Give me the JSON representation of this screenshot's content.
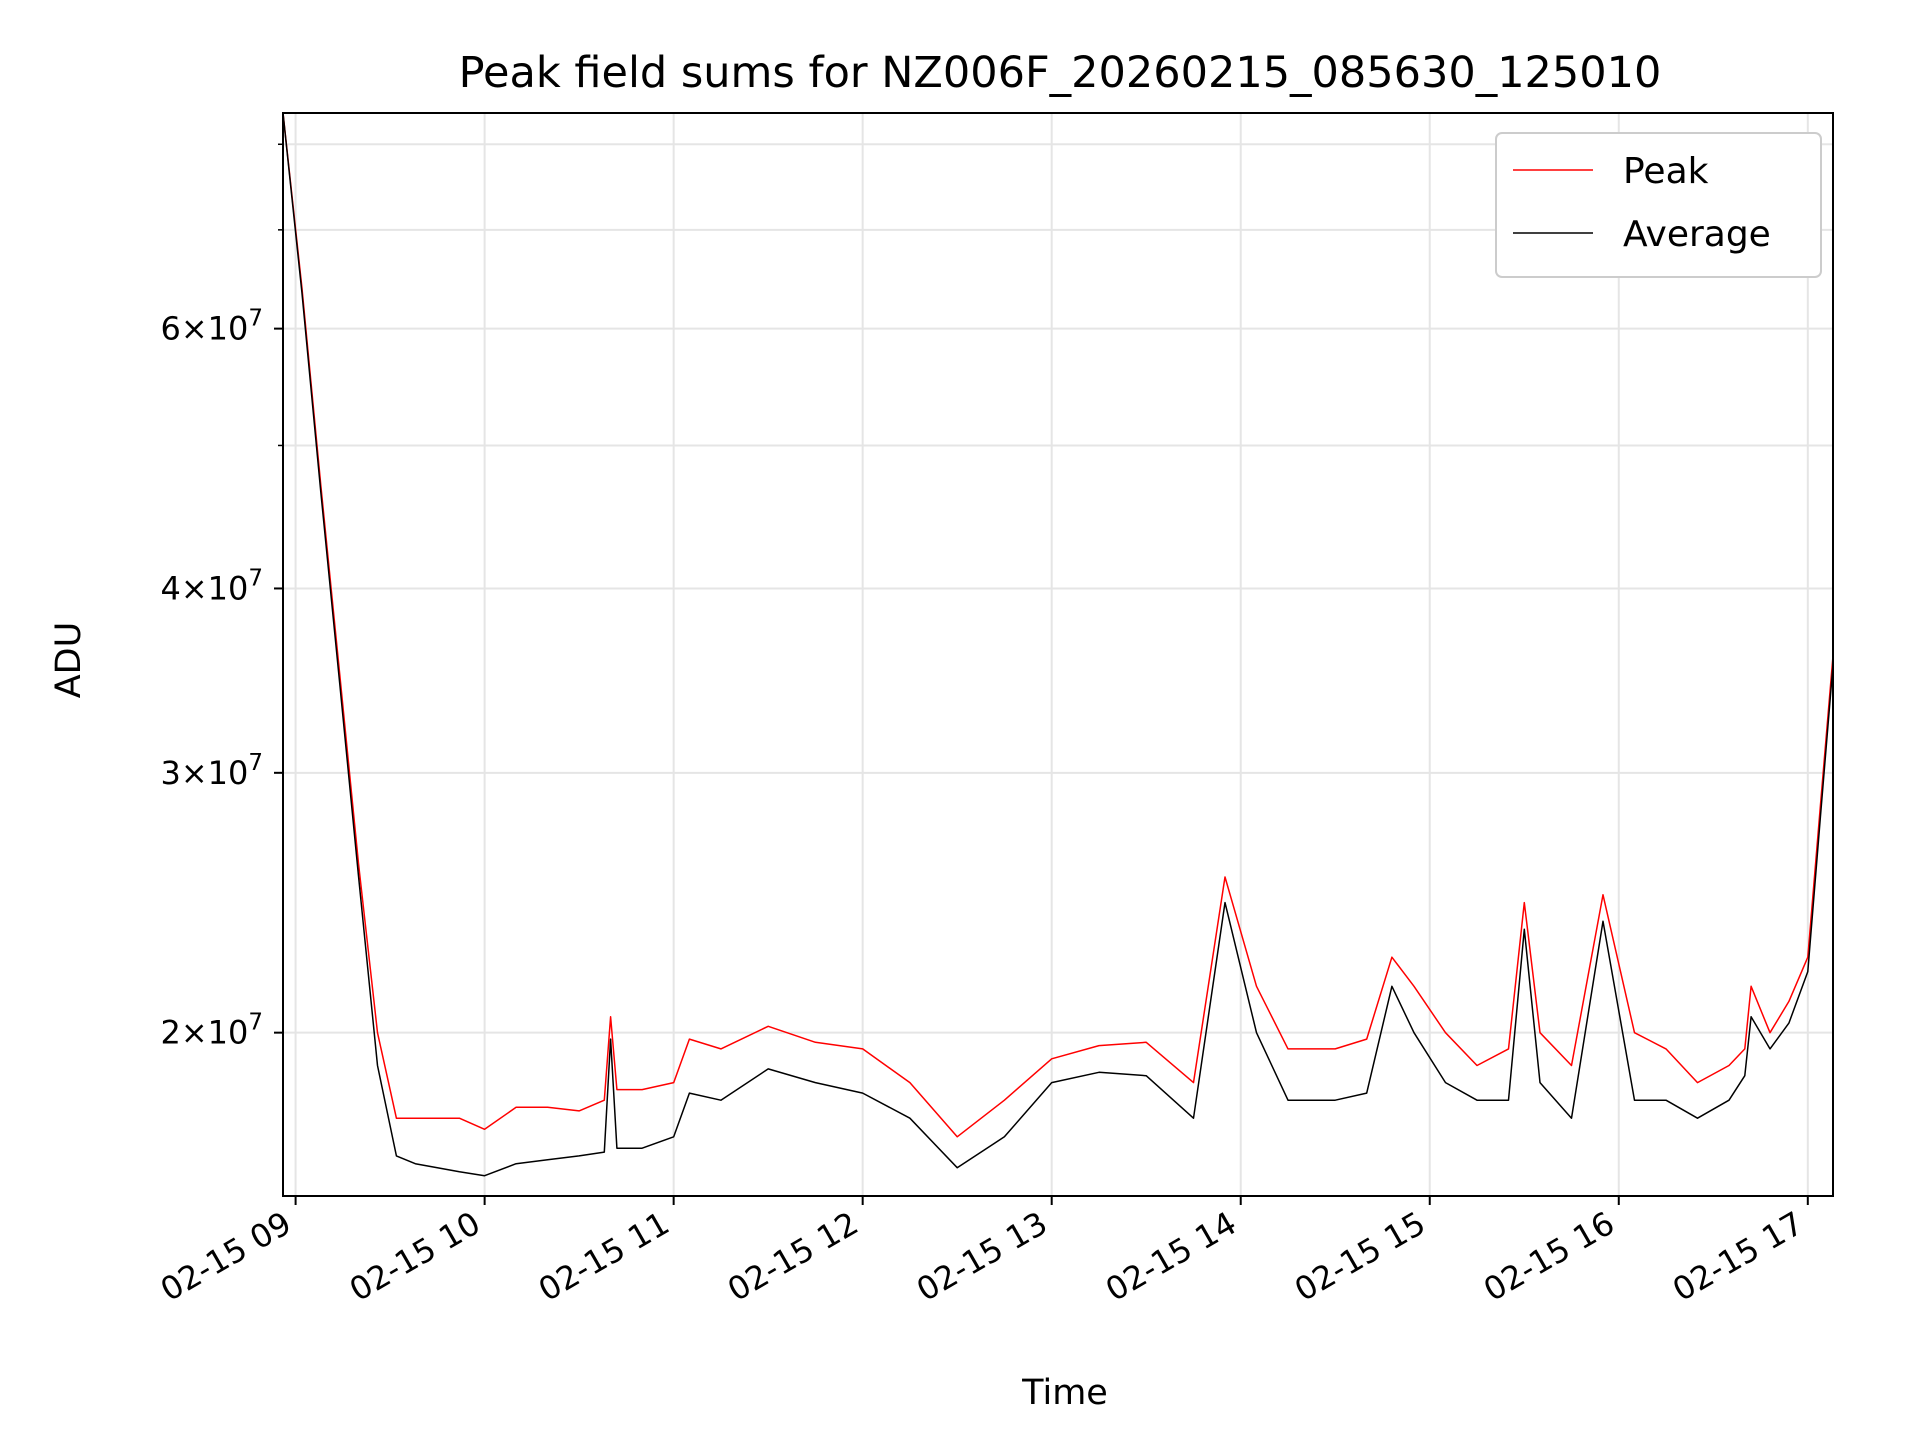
{
  "chart_data": {
    "type": "line",
    "title": "Peak field sums for NZ006F_20260215_085630_125010",
    "xlabel": "Time",
    "ylabel": "ADU",
    "yscale": "log",
    "xlim": [
      "02-15 08:56",
      "02-15 17:08"
    ],
    "ylim": [
      15500000,
      84000000
    ],
    "grid": true,
    "legend_position": "top-right",
    "x_ticks": [
      {
        "at": "02-15 09:00",
        "label": "02-15 09"
      },
      {
        "at": "02-15 10:00",
        "label": "02-15 10"
      },
      {
        "at": "02-15 11:00",
        "label": "02-15 11"
      },
      {
        "at": "02-15 12:00",
        "label": "02-15 12"
      },
      {
        "at": "02-15 13:00",
        "label": "02-15 13"
      },
      {
        "at": "02-15 14:00",
        "label": "02-15 14"
      },
      {
        "at": "02-15 15:00",
        "label": "02-15 15"
      },
      {
        "at": "02-15 16:00",
        "label": "02-15 16"
      },
      {
        "at": "02-15 17:00",
        "label": "02-15 17"
      }
    ],
    "y_ticks": [
      {
        "value": 20000000,
        "mantissa": "2",
        "base": "10",
        "exponent": "7"
      },
      {
        "value": 30000000,
        "mantissa": "3",
        "base": "10",
        "exponent": "7"
      },
      {
        "value": 40000000,
        "mantissa": "4",
        "base": "10",
        "exponent": "7"
      },
      {
        "value": 60000000,
        "mantissa": "6",
        "base": "10",
        "exponent": "7"
      }
    ],
    "y_minor_ticks": [
      50000000,
      70000000,
      80000000
    ],
    "times_symbol": "×",
    "series": [
      {
        "name": "Peak",
        "color": "#ff0000",
        "x": [
          "02-15 08:56",
          "02-15 09:02",
          "02-15 09:08",
          "02-15 09:14",
          "02-15 09:20",
          "02-15 09:26",
          "02-15 09:32",
          "02-15 09:38",
          "02-15 09:45",
          "02-15 09:52",
          "02-15 10:00",
          "02-15 10:10",
          "02-15 10:20",
          "02-15 10:30",
          "02-15 10:38",
          "02-15 10:40",
          "02-15 10:42",
          "02-15 10:50",
          "02-15 11:00",
          "02-15 11:05",
          "02-15 11:15",
          "02-15 11:30",
          "02-15 11:45",
          "02-15 12:00",
          "02-15 12:15",
          "02-15 12:30",
          "02-15 12:45",
          "02-15 13:00",
          "02-15 13:15",
          "02-15 13:30",
          "02-15 13:45",
          "02-15 13:55",
          "02-15 14:05",
          "02-15 14:15",
          "02-15 14:30",
          "02-15 14:40",
          "02-15 14:48",
          "02-15 14:55",
          "02-15 15:05",
          "02-15 15:15",
          "02-15 15:25",
          "02-15 15:30",
          "02-15 15:35",
          "02-15 15:45",
          "02-15 15:55",
          "02-15 16:05",
          "02-15 16:15",
          "02-15 16:25",
          "02-15 16:35",
          "02-15 16:40",
          "02-15 16:42",
          "02-15 16:48",
          "02-15 16:54",
          "02-15 17:00",
          "02-15 17:04",
          "02-15 17:08"
        ],
        "values": [
          84000000,
          64000000,
          47000000,
          35000000,
          26000000,
          20000000,
          17500000,
          17500000,
          17500000,
          17500000,
          17200000,
          17800000,
          17800000,
          17700000,
          18000000,
          20500000,
          18300000,
          18300000,
          18500000,
          19800000,
          19500000,
          20200000,
          19700000,
          19500000,
          18500000,
          17000000,
          18000000,
          19200000,
          19600000,
          19700000,
          18500000,
          25500000,
          21500000,
          19500000,
          19500000,
          19800000,
          22500000,
          21500000,
          20000000,
          19000000,
          19500000,
          24500000,
          20000000,
          19000000,
          24800000,
          20000000,
          19500000,
          18500000,
          19000000,
          19500000,
          21500000,
          20000000,
          21000000,
          22500000,
          28500000,
          36000000
        ]
      },
      {
        "name": "Average",
        "color": "#000000",
        "x": [
          "02-15 08:56",
          "02-15 09:02",
          "02-15 09:08",
          "02-15 09:14",
          "02-15 09:20",
          "02-15 09:26",
          "02-15 09:32",
          "02-15 09:38",
          "02-15 09:45",
          "02-15 09:52",
          "02-15 10:00",
          "02-15 10:10",
          "02-15 10:20",
          "02-15 10:30",
          "02-15 10:38",
          "02-15 10:40",
          "02-15 10:42",
          "02-15 10:50",
          "02-15 11:00",
          "02-15 11:05",
          "02-15 11:15",
          "02-15 11:30",
          "02-15 11:45",
          "02-15 12:00",
          "02-15 12:15",
          "02-15 12:30",
          "02-15 12:45",
          "02-15 13:00",
          "02-15 13:15",
          "02-15 13:30",
          "02-15 13:45",
          "02-15 13:55",
          "02-15 14:05",
          "02-15 14:15",
          "02-15 14:30",
          "02-15 14:40",
          "02-15 14:48",
          "02-15 14:55",
          "02-15 15:05",
          "02-15 15:15",
          "02-15 15:25",
          "02-15 15:30",
          "02-15 15:35",
          "02-15 15:45",
          "02-15 15:55",
          "02-15 16:05",
          "02-15 16:15",
          "02-15 16:25",
          "02-15 16:35",
          "02-15 16:40",
          "02-15 16:42",
          "02-15 16:48",
          "02-15 16:54",
          "02-15 17:00",
          "02-15 17:04",
          "02-15 17:08"
        ],
        "values": [
          84000000,
          63500000,
          46500000,
          34500000,
          25500000,
          19000000,
          16500000,
          16300000,
          16200000,
          16100000,
          16000000,
          16300000,
          16400000,
          16500000,
          16600000,
          19800000,
          16700000,
          16700000,
          17000000,
          18200000,
          18000000,
          18900000,
          18500000,
          18200000,
          17500000,
          16200000,
          17000000,
          18500000,
          18800000,
          18700000,
          17500000,
          24500000,
          20000000,
          18000000,
          18000000,
          18200000,
          21500000,
          20000000,
          18500000,
          18000000,
          18000000,
          23500000,
          18500000,
          17500000,
          23800000,
          18000000,
          18000000,
          17500000,
          18000000,
          18700000,
          20500000,
          19500000,
          20300000,
          22000000,
          28000000,
          35500000
        ]
      }
    ]
  }
}
